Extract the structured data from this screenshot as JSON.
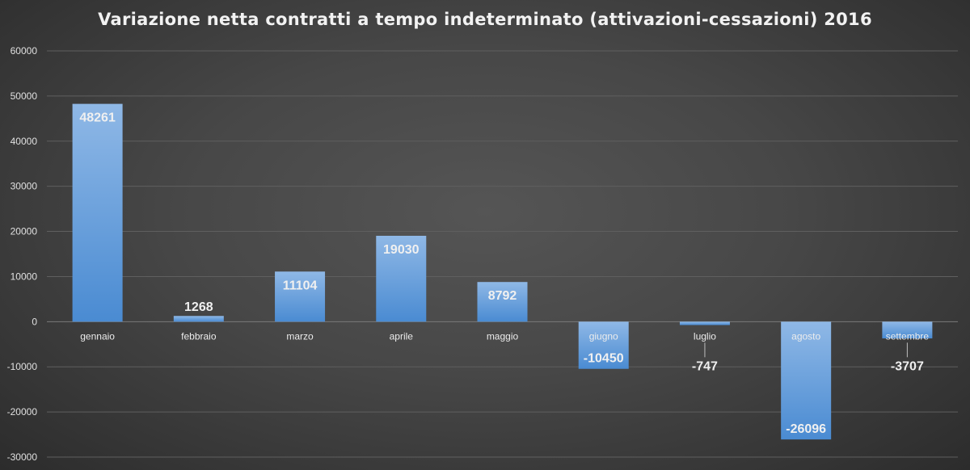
{
  "chart_data": {
    "type": "bar",
    "title": "Variazione netta contratti a tempo indeterminato (attivazioni-cessazioni) 2016",
    "xlabel": "",
    "ylabel": "",
    "categories": [
      "gennaio",
      "febbraio",
      "marzo",
      "aprile",
      "maggio",
      "giugno",
      "luglio",
      "agosto",
      "settembre"
    ],
    "values": [
      48261,
      1268,
      11104,
      19030,
      8792,
      -10450,
      -747,
      -26096,
      -3707
    ],
    "data_labels": [
      "48261",
      "1268",
      "11104",
      "19030",
      "8792",
      "-10450",
      "-747",
      "-26096",
      "-3707"
    ],
    "ylim": [
      -30000,
      60000
    ],
    "yticks": [
      60000,
      50000,
      40000,
      30000,
      20000,
      10000,
      0,
      -10000,
      -20000,
      -30000
    ],
    "ytick_labels": [
      "60000",
      "50000",
      "40000",
      "30000",
      "20000",
      "10000",
      "0",
      "-10000",
      "-20000",
      "-30000"
    ],
    "grid": true,
    "legend": "none",
    "colors": {
      "bar_top": "#8fb8e6",
      "bar_bottom": "#4a8bd2",
      "grid": "#5f5f5f",
      "axis_text": "#e0e0e0",
      "category_text": "#ececec",
      "data_label": "#f0f0f0",
      "leader_line": "#bfbfbf"
    }
  }
}
